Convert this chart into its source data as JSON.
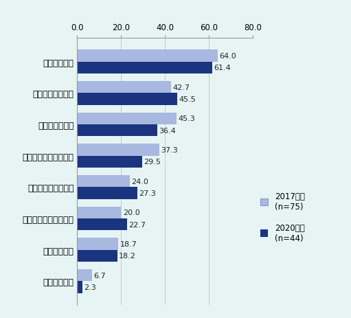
{
  "categories": [
    "新製品等創出",
    "個々の顧客ニーズ",
    "品質安定・向上",
    "マーケティング・販売",
    "業務効率化・最適化",
    "賃金上昇・労働力不足",
    "参入障壁低下",
    "熟練技術継承"
  ],
  "values_2017": [
    64.0,
    42.7,
    45.3,
    37.3,
    24.0,
    20.0,
    18.7,
    6.7
  ],
  "values_2020": [
    61.4,
    45.5,
    36.4,
    29.5,
    27.3,
    22.7,
    18.2,
    2.3
  ],
  "color_2017": "#a8b8e0",
  "color_2020": "#1a3480",
  "background_color": "#e6f4f4",
  "xlim": [
    0,
    80
  ],
  "xticks": [
    0.0,
    20.0,
    40.0,
    60.0,
    80.0
  ],
  "bar_height": 0.38,
  "label_2017": "2017年度\n(n=75)",
  "label_2020": "2020年度\n(n=44)",
  "value_fontsize": 8.0,
  "tick_fontsize": 8.5,
  "label_fontsize": 9.0
}
